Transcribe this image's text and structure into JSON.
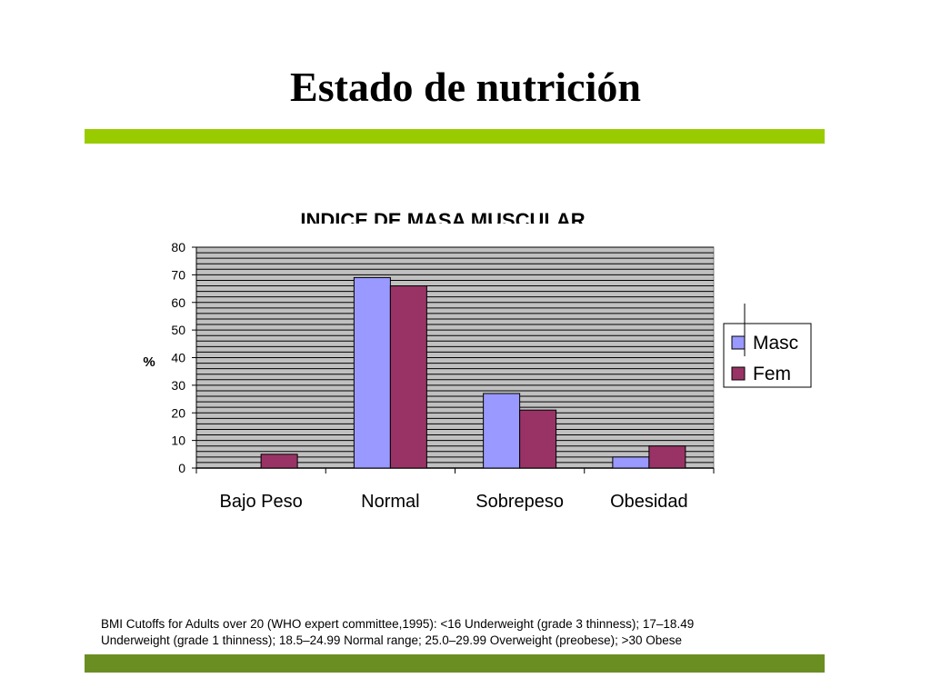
{
  "slide": {
    "title": "Estado de nutrición",
    "footnote_line1": "BMI Cutoffs for Adults over 20 (WHO expert committee,1995): <16  Underweight (grade 3 thinness); 17–18.49",
    "footnote_line2": "Underweight (grade 1 thinness); 18.5–24.99 Normal range; 25.0–29.99 Overweight (preobese); >30 Obese"
  },
  "colors": {
    "bar_top": "#99cc00",
    "bar_bottom": "#6b8e23",
    "plot_bg": "#c0c0c0",
    "grid": "#000000",
    "masc": "#9999ff",
    "fem": "#993366"
  },
  "chart_data": {
    "type": "bar",
    "title": "INDICE DE MASA MUSCULAR",
    "categories": [
      "Bajo Peso",
      "Normal",
      "Sobrepeso",
      "Obesidad"
    ],
    "series": [
      {
        "name": "Masc",
        "values": [
          0,
          69,
          27,
          4
        ]
      },
      {
        "name": "Fem",
        "values": [
          5,
          66,
          21,
          8
        ]
      }
    ],
    "ylabel": "%",
    "ylim": [
      0,
      80
    ],
    "yticks": [
      "0",
      "10",
      "20",
      "30",
      "40",
      "50",
      "60",
      "70",
      "80"
    ],
    "grid": true,
    "legend": "right"
  }
}
